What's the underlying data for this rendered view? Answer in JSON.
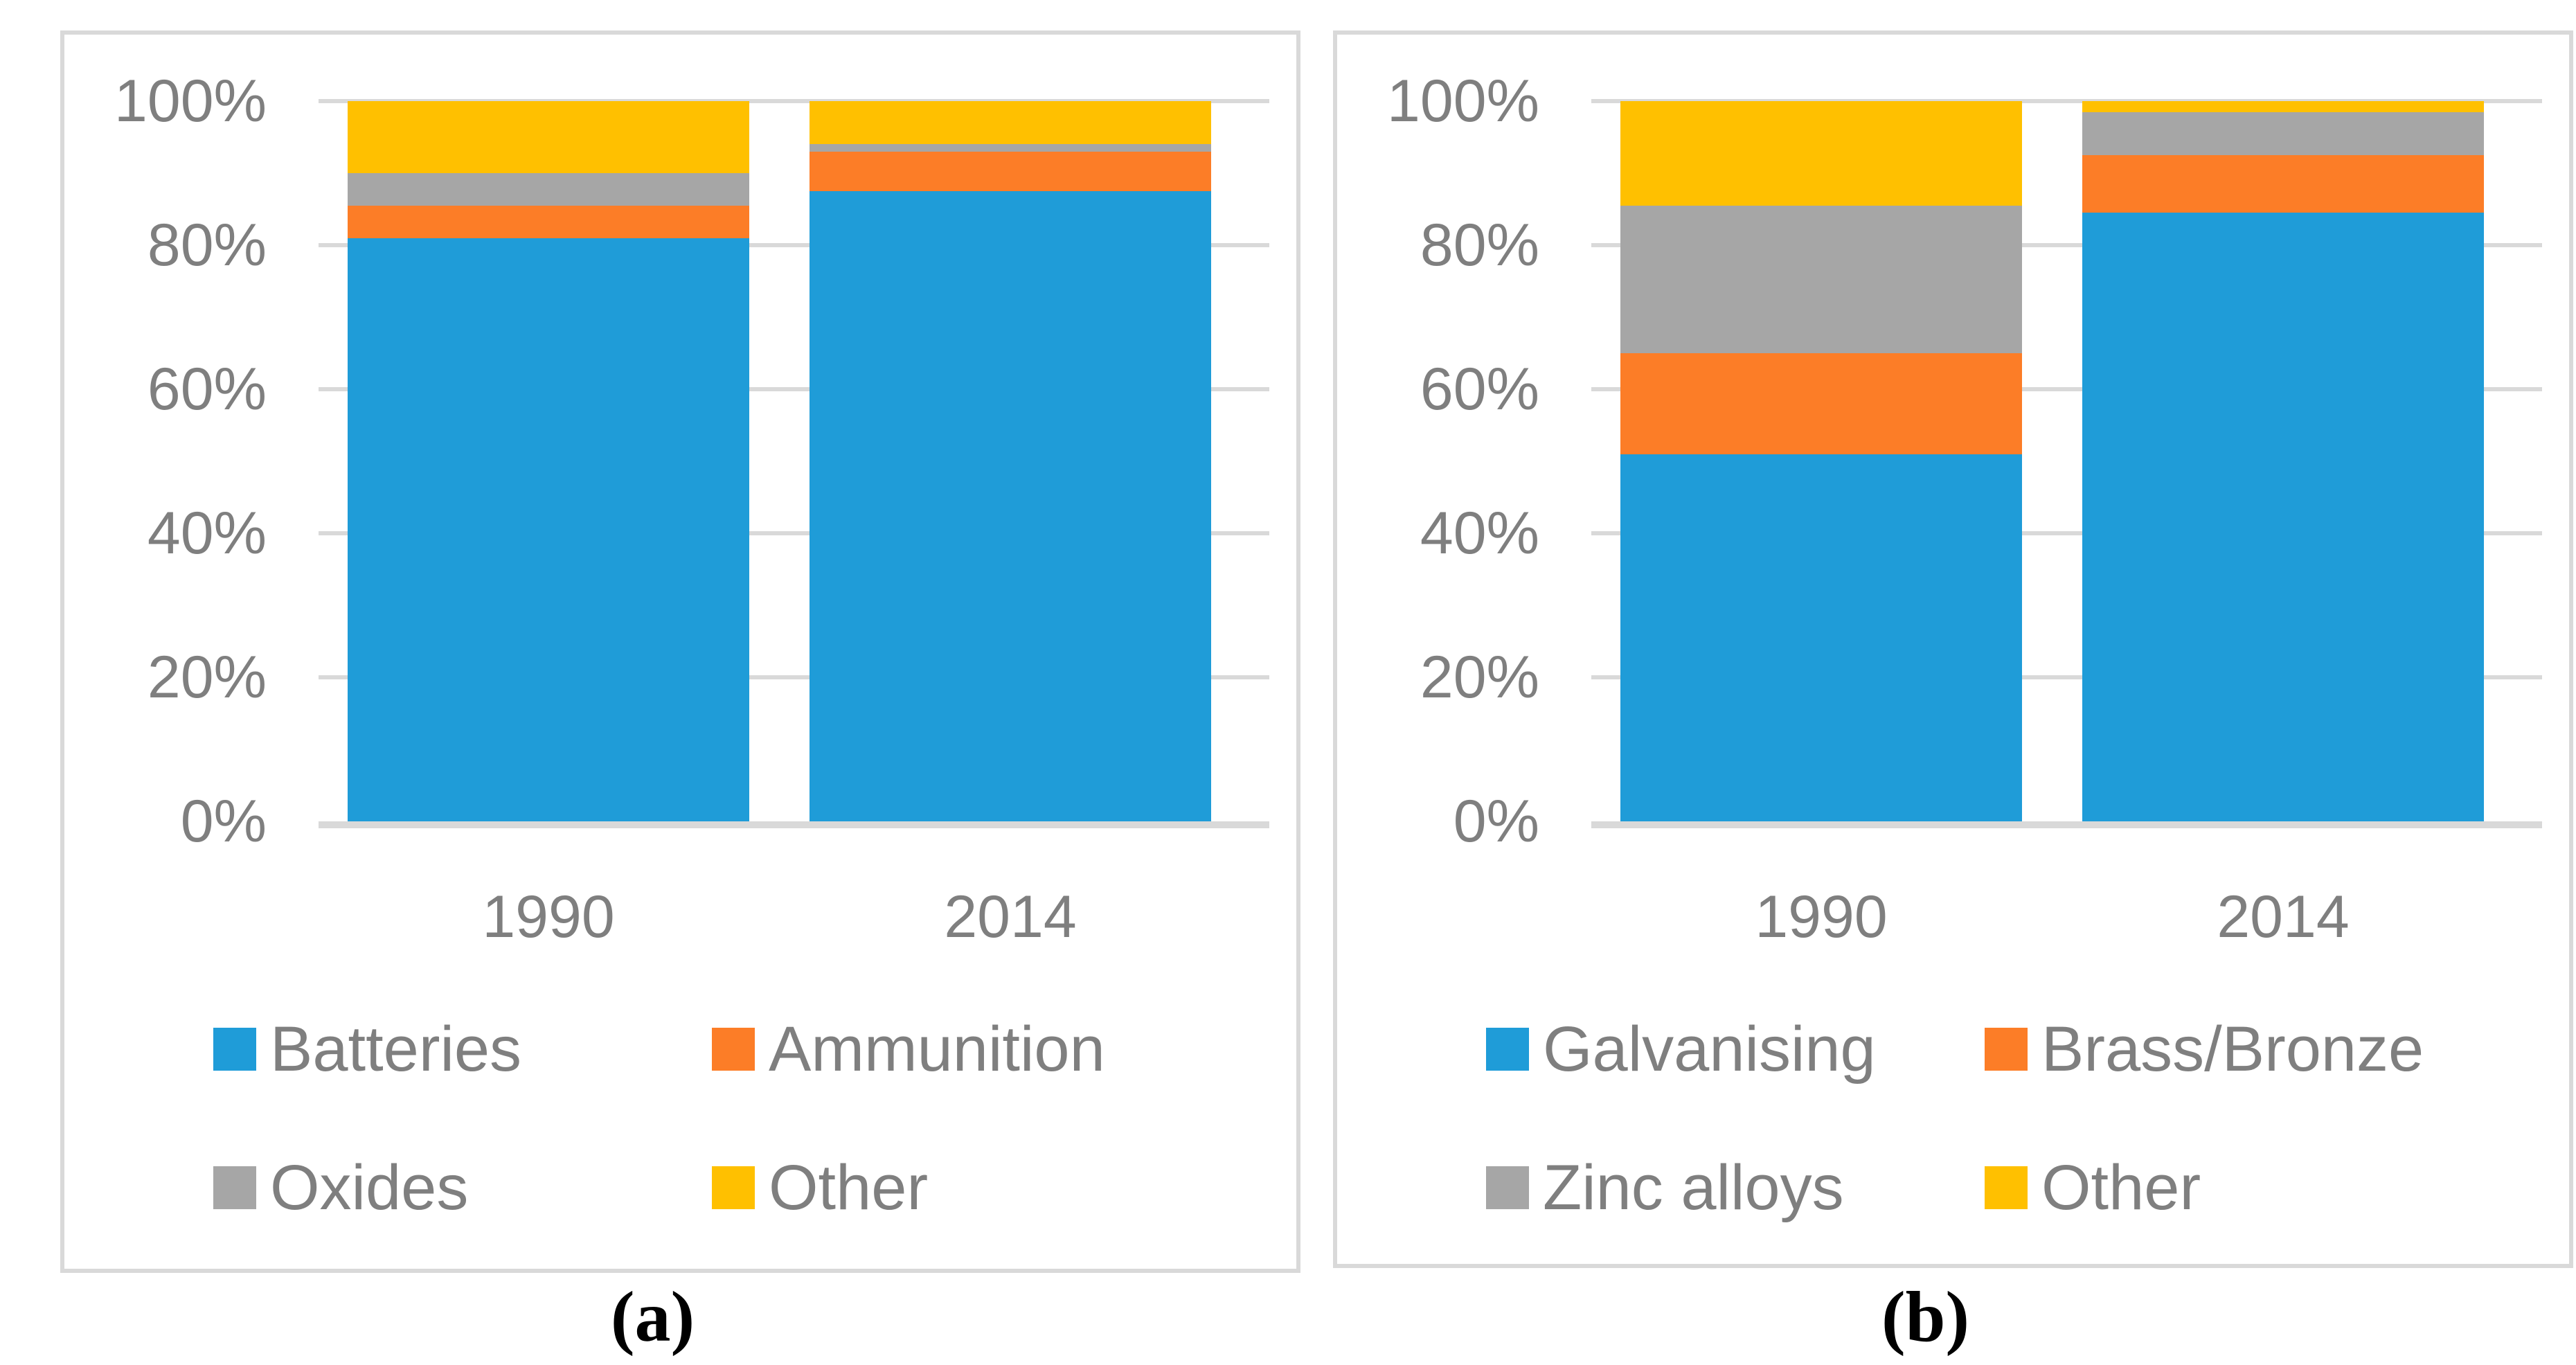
{
  "page": {
    "background": "#ffffff"
  },
  "styles": {
    "grid_color": "#D9D9D9",
    "axis_line_color": "#D9D9D9",
    "tick_text_color": "#7F7F7F",
    "legend_text_color": "#7F7F7F",
    "panel_border_color": "#D9D9D9",
    "caption_color": "#000000"
  },
  "chart_data": [
    {
      "type": "bar",
      "stacked": true,
      "percent_stacked": true,
      "caption": "(a)",
      "categories": [
        "1990",
        "2014"
      ],
      "series": [
        {
          "name": "Batteries",
          "color": "#1F9CD8",
          "values": [
            81,
            87.5
          ]
        },
        {
          "name": "Ammunition",
          "color": "#FC7D27",
          "values": [
            4.5,
            5.5
          ]
        },
        {
          "name": "Oxides",
          "color": "#A6A6A6",
          "values": [
            4.5,
            1
          ]
        },
        {
          "name": "Other",
          "color": "#FFC000",
          "values": [
            10,
            6
          ]
        }
      ],
      "y_ticks": [
        "100%",
        "80%",
        "60%",
        "40%",
        "20%",
        "0%"
      ],
      "ylim": [
        0,
        100
      ],
      "grid": true,
      "legend_position": "bottom-two-columns",
      "title": "",
      "xlabel": "",
      "ylabel": ""
    },
    {
      "type": "bar",
      "stacked": true,
      "percent_stacked": true,
      "caption": "(b)",
      "categories": [
        "1990",
        "2014"
      ],
      "series": [
        {
          "name": "Galvanising",
          "color": "#1F9CD8",
          "values": [
            51,
            84.5
          ]
        },
        {
          "name": "Brass/Bronze",
          "color": "#FC7D27",
          "values": [
            14,
            8
          ]
        },
        {
          "name": "Zinc alloys",
          "color": "#A6A6A6",
          "values": [
            20.5,
            6
          ]
        },
        {
          "name": "Other",
          "color": "#FFC000",
          "values": [
            14.5,
            1.5
          ]
        }
      ],
      "y_ticks": [
        "100%",
        "80%",
        "60%",
        "40%",
        "20%",
        "0%"
      ],
      "ylim": [
        0,
        100
      ],
      "grid": true,
      "legend_position": "bottom-two-columns",
      "title": "",
      "xlabel": "",
      "ylabel": ""
    }
  ]
}
